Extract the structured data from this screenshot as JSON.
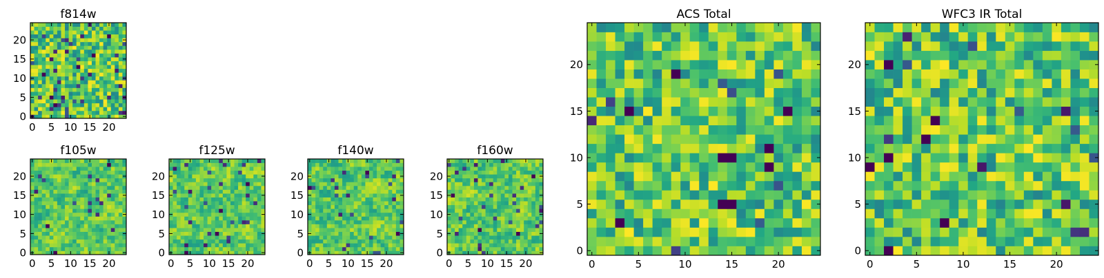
{
  "figure": {
    "description_none": ""
  },
  "chart_data": [
    {
      "type": "heatmap",
      "id": "f814w",
      "title": "f814w",
      "grid": [
        25,
        25
      ],
      "xlim": [
        0,
        24
      ],
      "ylim": [
        0,
        24
      ],
      "xticks": [
        0,
        5,
        10,
        15,
        20
      ],
      "yticks": [
        0,
        5,
        10,
        15,
        20
      ],
      "seed": 814,
      "smooth": 0,
      "dark_fraction": 0.05,
      "colormap": "viridis",
      "dark_cells": [
        [
          5,
          5
        ],
        [
          6,
          3
        ],
        [
          12,
          13
        ],
        [
          16,
          16
        ],
        [
          3,
          11
        ],
        [
          20,
          21
        ]
      ]
    },
    {
      "type": "heatmap",
      "id": "f105w",
      "title": "f105w",
      "grid": [
        25,
        25
      ],
      "xlim": [
        0,
        24
      ],
      "ylim": [
        0,
        24
      ],
      "xticks": [
        0,
        5,
        10,
        15,
        20
      ],
      "yticks": [
        0,
        5,
        10,
        15,
        20
      ],
      "seed": 105,
      "smooth": 1,
      "dark_fraction": 0.02,
      "colormap": "viridis",
      "dark_cells": [
        [
          6,
          0
        ],
        [
          20,
          23
        ],
        [
          4,
          7
        ]
      ]
    },
    {
      "type": "heatmap",
      "id": "f125w",
      "title": "f125w",
      "grid": [
        25,
        25
      ],
      "xlim": [
        0,
        24
      ],
      "ylim": [
        0,
        24
      ],
      "xticks": [
        0,
        5,
        10,
        15,
        20
      ],
      "yticks": [
        0,
        5,
        10,
        15,
        20
      ],
      "seed": 125,
      "smooth": 1,
      "dark_fraction": 0.03,
      "colormap": "viridis",
      "dark_cells": [
        [
          13,
          11
        ],
        [
          12,
          5
        ],
        [
          4,
          0
        ],
        [
          20,
          18
        ]
      ]
    },
    {
      "type": "heatmap",
      "id": "f140w",
      "title": "f140w",
      "grid": [
        25,
        25
      ],
      "xlim": [
        0,
        24
      ],
      "ylim": [
        0,
        24
      ],
      "xticks": [
        0,
        5,
        10,
        15,
        20
      ],
      "yticks": [
        0,
        5,
        10,
        15,
        20
      ],
      "seed": 140,
      "smooth": 1,
      "dark_fraction": 0.03,
      "colormap": "viridis",
      "dark_cells": [
        [
          0,
          17
        ],
        [
          23,
          5
        ],
        [
          15,
          21
        ]
      ]
    },
    {
      "type": "heatmap",
      "id": "f160w",
      "title": "f160w",
      "grid": [
        25,
        25
      ],
      "xlim": [
        0,
        24
      ],
      "ylim": [
        0,
        24
      ],
      "xticks": [
        0,
        5,
        10,
        15,
        20
      ],
      "yticks": [
        0,
        5,
        10,
        15,
        20
      ],
      "seed": 160,
      "smooth": 1,
      "dark_fraction": 0.03,
      "colormap": "viridis",
      "dark_cells": [
        [
          1,
          15
        ],
        [
          8,
          6
        ],
        [
          18,
          5
        ],
        [
          22,
          20
        ]
      ]
    },
    {
      "type": "heatmap",
      "id": "acs-total",
      "title": "ACS Total",
      "grid": [
        25,
        25
      ],
      "xlim": [
        0,
        24
      ],
      "ylim": [
        0,
        24
      ],
      "xticks": [
        0,
        5,
        10,
        15,
        20
      ],
      "yticks": [
        0,
        5,
        10,
        15,
        20
      ],
      "seed": 777,
      "smooth": 0,
      "dark_fraction": 0.015,
      "colormap": "viridis",
      "dark_cells": [
        [
          9,
          19
        ],
        [
          14,
          10
        ],
        [
          15,
          10
        ],
        [
          14,
          5
        ],
        [
          15,
          5
        ],
        [
          19,
          9
        ],
        [
          3,
          3
        ],
        [
          19,
          11
        ],
        [
          4,
          15
        ],
        [
          21,
          15
        ]
      ]
    },
    {
      "type": "heatmap",
      "id": "wfc3-ir-total",
      "title": "WFC3 IR Total",
      "grid": [
        25,
        25
      ],
      "xlim": [
        0,
        24
      ],
      "ylim": [
        0,
        24
      ],
      "xticks": [
        0,
        5,
        10,
        15,
        20
      ],
      "yticks": [
        0,
        5,
        10,
        15,
        20
      ],
      "seed": 333,
      "smooth": 0,
      "dark_fraction": 0.015,
      "colormap": "viridis",
      "dark_cells": [
        [
          2,
          20
        ],
        [
          7,
          14
        ],
        [
          6,
          12
        ],
        [
          0,
          9
        ],
        [
          8,
          3
        ],
        [
          2,
          0
        ],
        [
          2,
          10
        ]
      ]
    }
  ]
}
